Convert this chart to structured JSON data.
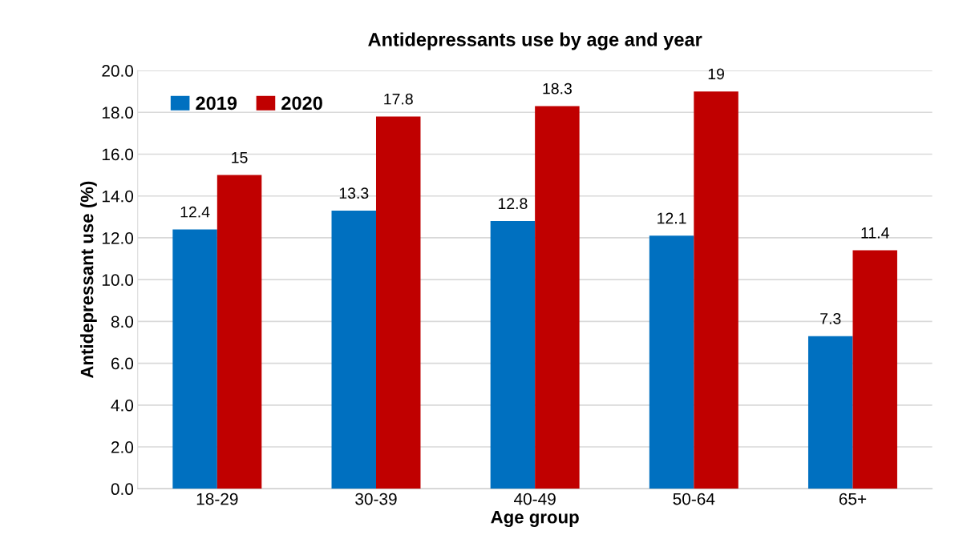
{
  "chart_data": {
    "type": "bar",
    "title": "Antidepressants use by age and year",
    "xlabel": "Age group",
    "ylabel": "Antidepressant use (%)",
    "categories": [
      "18-29",
      "30-39",
      "40-49",
      "50-64",
      "65+"
    ],
    "series": [
      {
        "name": "2019",
        "color": "#0070c0",
        "values": [
          12.4,
          13.3,
          12.8,
          12.1,
          7.3
        ]
      },
      {
        "name": "2020",
        "color": "#c00000",
        "values": [
          15,
          17.8,
          18.3,
          19,
          11.4
        ]
      }
    ],
    "ylim": [
      0,
      20
    ],
    "yticks": [
      {
        "value": 0,
        "label": "0.0"
      },
      {
        "value": 2,
        "label": "2.0"
      },
      {
        "value": 4,
        "label": "4.0"
      },
      {
        "value": 6,
        "label": "6.0"
      },
      {
        "value": 8,
        "label": "8.0"
      },
      {
        "value": 10,
        "label": "10.0"
      },
      {
        "value": 12,
        "label": "12.0"
      },
      {
        "value": 14,
        "label": "14.0"
      },
      {
        "value": 16,
        "label": "16.0"
      },
      {
        "value": 18,
        "label": "18.0"
      },
      {
        "value": 20,
        "label": "20.0"
      }
    ],
    "grid": "y",
    "legend": "top left",
    "data_labels": true
  }
}
